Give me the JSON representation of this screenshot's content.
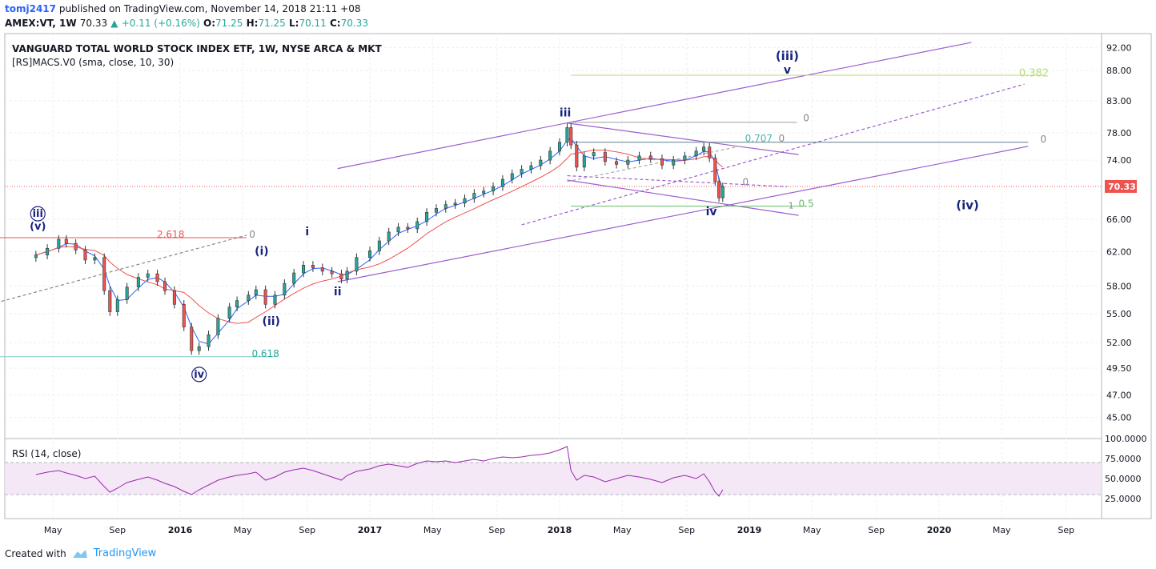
{
  "header": {
    "user": "tomj2417",
    "published": "published on TradingView.com, November 14, 2018 21:11 +08",
    "symbol": "AMEX:VT, 1W",
    "last": "70.33",
    "change": "+0.11 (+0.16%)",
    "open_label": "O:",
    "open": "71.25",
    "high_label": "H:",
    "high": "71.25",
    "low_label": "L:",
    "low": "70.11",
    "close_label": "C:",
    "close": "70.33"
  },
  "footer": {
    "created_with": "Created with",
    "brand": "TradingView"
  },
  "colors": {
    "up": "#26a69a",
    "down": "#ef5350",
    "channel": "#9c5fcf",
    "sma_fast": "#2962ff",
    "sma_slow": "#ef5350",
    "rsi": "#9c27b0",
    "fib_green": "#66bb6a",
    "wave_label": "#1a237e"
  },
  "chart_data": [
    {
      "type": "candlestick",
      "title": "VANGUARD TOTAL WORLD STOCK INDEX ETF, 1W, NYSE ARCA & MKT",
      "indicator": "[RS]MACS.V0 (sma, close, 10, 30)",
      "x_ticks": [
        "May",
        "Sep",
        "2016",
        "May",
        "Sep",
        "2017",
        "May",
        "Sep",
        "2018",
        "May",
        "Sep",
        "2019",
        "May",
        "Sep",
        "2020",
        "May",
        "Sep"
      ],
      "y_ticks": [
        "92.00",
        "88.00",
        "83.00",
        "78.00",
        "74.00",
        "66.00",
        "62.00",
        "58.00",
        "55.00",
        "52.00",
        "49.50",
        "47.00",
        "45.00"
      ],
      "last_price_label": "70.33",
      "last_price": 70.33,
      "y_scale": "log",
      "ylim": [
        43.2,
        94.5
      ],
      "close_series": [
        [
          2015.24,
          61.6
        ],
        [
          2015.3,
          62.4
        ],
        [
          2015.36,
          63.5
        ],
        [
          2015.4,
          63.0
        ],
        [
          2015.45,
          62.2
        ],
        [
          2015.5,
          61.0
        ],
        [
          2015.55,
          61.3
        ],
        [
          2015.6,
          57.5
        ],
        [
          2015.63,
          55.2
        ],
        [
          2015.67,
          56.5
        ],
        [
          2015.72,
          57.9
        ],
        [
          2015.78,
          59.0
        ],
        [
          2015.83,
          59.4
        ],
        [
          2015.88,
          58.5
        ],
        [
          2015.92,
          57.5
        ],
        [
          2015.97,
          56.0
        ],
        [
          2016.02,
          53.6
        ],
        [
          2016.06,
          51.2
        ],
        [
          2016.1,
          51.6
        ],
        [
          2016.15,
          52.8
        ],
        [
          2016.2,
          54.5
        ],
        [
          2016.26,
          55.7
        ],
        [
          2016.3,
          56.4
        ],
        [
          2016.36,
          57.0
        ],
        [
          2016.4,
          57.6
        ],
        [
          2016.45,
          56.0
        ],
        [
          2016.5,
          57.0
        ],
        [
          2016.55,
          58.3
        ],
        [
          2016.6,
          59.5
        ],
        [
          2016.65,
          60.4
        ],
        [
          2016.7,
          60.1
        ],
        [
          2016.75,
          59.7
        ],
        [
          2016.8,
          59.4
        ],
        [
          2016.85,
          58.8
        ],
        [
          2016.88,
          59.7
        ],
        [
          2016.93,
          61.3
        ],
        [
          2017.0,
          62.1
        ],
        [
          2017.05,
          63.3
        ],
        [
          2017.1,
          64.4
        ],
        [
          2017.15,
          65.0
        ],
        [
          2017.2,
          64.8
        ],
        [
          2017.25,
          65.7
        ],
        [
          2017.3,
          66.9
        ],
        [
          2017.35,
          67.4
        ],
        [
          2017.4,
          67.9
        ],
        [
          2017.45,
          68.1
        ],
        [
          2017.5,
          68.7
        ],
        [
          2017.55,
          69.4
        ],
        [
          2017.6,
          69.7
        ],
        [
          2017.65,
          70.3
        ],
        [
          2017.7,
          71.3
        ],
        [
          2017.75,
          72.1
        ],
        [
          2017.8,
          72.7
        ],
        [
          2017.85,
          73.2
        ],
        [
          2017.9,
          74.0
        ],
        [
          2017.95,
          75.3
        ],
        [
          2018.0,
          76.6
        ],
        [
          2018.04,
          78.8
        ],
        [
          2018.06,
          76.2
        ],
        [
          2018.09,
          73.0
        ],
        [
          2018.13,
          74.6
        ],
        [
          2018.18,
          75.1
        ],
        [
          2018.24,
          73.8
        ],
        [
          2018.3,
          73.4
        ],
        [
          2018.36,
          74.0
        ],
        [
          2018.42,
          74.6
        ],
        [
          2018.48,
          74.2
        ],
        [
          2018.54,
          73.3
        ],
        [
          2018.6,
          74.0
        ],
        [
          2018.66,
          74.6
        ],
        [
          2018.72,
          75.3
        ],
        [
          2018.76,
          75.9
        ],
        [
          2018.79,
          74.3
        ],
        [
          2018.82,
          71.0
        ],
        [
          2018.84,
          68.8
        ],
        [
          2018.86,
          70.3
        ]
      ],
      "annotations": [
        {
          "text": "ⓘⓘⓘ",
          "note": "circled iii"
        },
        {
          "text": "(v)"
        },
        {
          "text": "ⓘⓥ",
          "note": "circled iv"
        },
        {
          "text": "2.618"
        },
        {
          "text": "0"
        },
        {
          "text": "0.618"
        },
        {
          "text": "(i)"
        },
        {
          "text": "(ii)"
        },
        {
          "text": "i"
        },
        {
          "text": "ii"
        },
        {
          "text": "iii"
        },
        {
          "text": "iv"
        },
        {
          "text": "(iii)"
        },
        {
          "text": "v"
        },
        {
          "text": "(iv)"
        },
        {
          "text": "0.382"
        },
        {
          "text": "0.707"
        },
        {
          "text": "0.5"
        },
        {
          "text": "1"
        }
      ]
    },
    {
      "type": "line",
      "title": "RSI (14, close)",
      "y_ticks": [
        "100.0000",
        "75.0000",
        "50.0000",
        "25.0000"
      ],
      "ylim": [
        0,
        100
      ],
      "band": [
        30,
        70
      ],
      "series": [
        [
          2015.24,
          55
        ],
        [
          2015.3,
          58
        ],
        [
          2015.36,
          60
        ],
        [
          2015.4,
          57
        ],
        [
          2015.45,
          54
        ],
        [
          2015.5,
          50
        ],
        [
          2015.55,
          53
        ],
        [
          2015.6,
          40
        ],
        [
          2015.63,
          33
        ],
        [
          2015.67,
          38
        ],
        [
          2015.72,
          45
        ],
        [
          2015.78,
          49
        ],
        [
          2015.83,
          52
        ],
        [
          2015.88,
          48
        ],
        [
          2015.92,
          44
        ],
        [
          2015.97,
          40
        ],
        [
          2016.02,
          34
        ],
        [
          2016.06,
          30
        ],
        [
          2016.1,
          36
        ],
        [
          2016.15,
          42
        ],
        [
          2016.2,
          48
        ],
        [
          2016.26,
          52
        ],
        [
          2016.3,
          54
        ],
        [
          2016.36,
          56
        ],
        [
          2016.4,
          58
        ],
        [
          2016.45,
          48
        ],
        [
          2016.5,
          52
        ],
        [
          2016.55,
          58
        ],
        [
          2016.6,
          61
        ],
        [
          2016.65,
          63
        ],
        [
          2016.7,
          60
        ],
        [
          2016.75,
          56
        ],
        [
          2016.8,
          52
        ],
        [
          2016.85,
          48
        ],
        [
          2016.88,
          54
        ],
        [
          2016.93,
          59
        ],
        [
          2017.0,
          62
        ],
        [
          2017.05,
          66
        ],
        [
          2017.1,
          68
        ],
        [
          2017.15,
          66
        ],
        [
          2017.2,
          64
        ],
        [
          2017.25,
          69
        ],
        [
          2017.3,
          72
        ],
        [
          2017.35,
          71
        ],
        [
          2017.4,
          72
        ],
        [
          2017.45,
          70
        ],
        [
          2017.5,
          72
        ],
        [
          2017.55,
          74
        ],
        [
          2017.6,
          72
        ],
        [
          2017.65,
          75
        ],
        [
          2017.7,
          77
        ],
        [
          2017.75,
          76
        ],
        [
          2017.8,
          77
        ],
        [
          2017.85,
          79
        ],
        [
          2017.9,
          80
        ],
        [
          2017.95,
          82
        ],
        [
          2018.0,
          86
        ],
        [
          2018.04,
          90
        ],
        [
          2018.06,
          60
        ],
        [
          2018.09,
          48
        ],
        [
          2018.13,
          54
        ],
        [
          2018.18,
          52
        ],
        [
          2018.24,
          46
        ],
        [
          2018.3,
          50
        ],
        [
          2018.36,
          54
        ],
        [
          2018.42,
          52
        ],
        [
          2018.48,
          49
        ],
        [
          2018.54,
          45
        ],
        [
          2018.6,
          51
        ],
        [
          2018.66,
          54
        ],
        [
          2018.72,
          50
        ],
        [
          2018.76,
          56
        ],
        [
          2018.79,
          46
        ],
        [
          2018.82,
          33
        ],
        [
          2018.84,
          28
        ],
        [
          2018.86,
          36
        ]
      ]
    }
  ]
}
